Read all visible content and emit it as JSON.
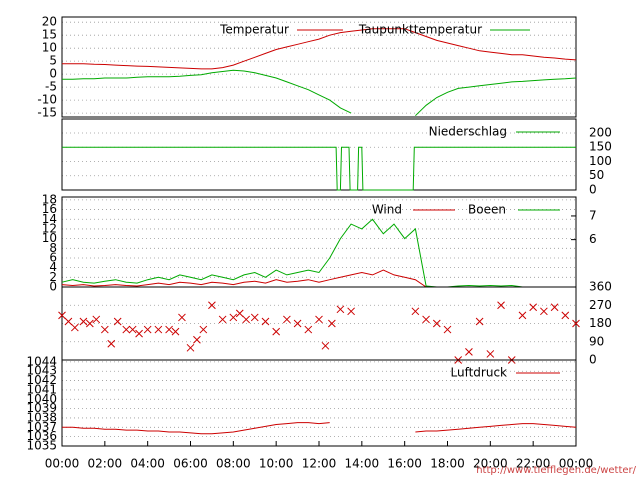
{
  "chart_data": [
    {
      "type": "line",
      "xlim": [
        0,
        24
      ],
      "ylim": [
        -16.5,
        22
      ],
      "yticks": [
        -15,
        -10,
        -5,
        0,
        5,
        10,
        15,
        20
      ],
      "grid": true,
      "x": [
        0,
        0.5,
        1,
        1.5,
        2,
        2.5,
        3,
        3.5,
        4,
        4.5,
        5,
        5.5,
        6,
        6.5,
        7,
        7.5,
        8,
        8.5,
        9,
        9.5,
        10,
        10.5,
        11,
        11.5,
        12,
        12.5,
        13,
        13.5,
        14,
        14.5,
        15,
        15.5,
        16,
        16.5,
        17,
        17.5,
        18,
        18.5,
        19,
        19.5,
        20,
        20.5,
        21,
        21.5,
        22,
        22.5,
        23,
        23.5,
        24
      ],
      "series": [
        {
          "name": "Temperatur",
          "color": "#cc0000",
          "values": [
            4,
            4,
            4,
            3.8,
            3.7,
            3.5,
            3.3,
            3.1,
            3,
            2.8,
            2.6,
            2.4,
            2.2,
            2,
            2,
            2.5,
            3.5,
            5,
            6.5,
            8,
            9.5,
            10.5,
            11.5,
            12.5,
            13.5,
            15,
            16,
            16.5,
            17,
            17.5,
            17.5,
            17.5,
            17.5,
            16,
            14.5,
            13,
            12,
            11,
            10,
            9,
            8.5,
            8,
            7.5,
            7.5,
            7,
            6.5,
            6.2,
            5.8,
            5.5
          ]
        },
        {
          "name": "Taupunkttemperatur",
          "color": "#00aa00",
          "values": [
            -2,
            -2,
            -1.8,
            -1.8,
            -1.5,
            -1.5,
            -1.5,
            -1.2,
            -1,
            -1,
            -1,
            -0.8,
            -0.5,
            -0.2,
            0.5,
            1,
            1.5,
            1.2,
            0.5,
            -0.5,
            -1.5,
            -3,
            -4.5,
            -6,
            -8,
            -10,
            -13,
            -15,
            null,
            null,
            null,
            null,
            null,
            -16,
            -12,
            -9,
            -7,
            -5.5,
            -5,
            -4.5,
            -4,
            -3.5,
            -3,
            -2.8,
            -2.5,
            -2.2,
            -2,
            -1.8,
            -1.5
          ]
        }
      ]
    },
    {
      "type": "line",
      "xlim": [
        0,
        24
      ],
      "ylim": [
        0,
        249
      ],
      "yticks": [
        0,
        50,
        100,
        150,
        200
      ],
      "grid": true,
      "x": [
        0,
        12.8,
        12.85,
        13.0,
        13.05,
        13.4,
        13.45,
        13.8,
        13.85,
        14.0,
        14.05,
        16.4,
        16.45,
        24
      ],
      "series": [
        {
          "name": "Niederschlag",
          "color": "#00aa00",
          "values": [
            150,
            150,
            0,
            0,
            150,
            150,
            0,
            0,
            150,
            150,
            0,
            0,
            150,
            150
          ]
        }
      ]
    },
    {
      "type": "line",
      "xlim": [
        0,
        24
      ],
      "ylim": [
        0,
        18.6
      ],
      "yticks": [
        0,
        2,
        4,
        6,
        8,
        10,
        12,
        14,
        16,
        18
      ],
      "y2lim": [
        4,
        7.8
      ],
      "y2ticks": [
        6,
        7
      ],
      "grid": true,
      "x": [
        0,
        0.5,
        1,
        1.5,
        2,
        2.5,
        3,
        3.5,
        4,
        4.5,
        5,
        5.5,
        6,
        6.5,
        7,
        7.5,
        8,
        8.5,
        9,
        9.5,
        10,
        10.5,
        11,
        11.5,
        12,
        12.5,
        13,
        13.5,
        14,
        14.5,
        15,
        15.5,
        16,
        16.5,
        17,
        17.5,
        18,
        18.5,
        19,
        19.5,
        20,
        20.5,
        21,
        21.5,
        22,
        22.5,
        23,
        23.5,
        24
      ],
      "series": [
        {
          "name": "Wind",
          "color": "#cc0000",
          "values": [
            0.5,
            0.3,
            0.5,
            0.2,
            0.3,
            0.5,
            0.3,
            0.2,
            0.5,
            0.8,
            0.5,
            1,
            0.8,
            0.5,
            1,
            0.8,
            0.5,
            1,
            1.2,
            0.8,
            1.5,
            1,
            1.2,
            1.5,
            1,
            1.5,
            2,
            2.5,
            3,
            2.5,
            3.5,
            2.5,
            2,
            1.5,
            0,
            0,
            0,
            0,
            0,
            0,
            0,
            0,
            0,
            0,
            0,
            0,
            0,
            0,
            0
          ]
        },
        {
          "name": "Boeen",
          "color": "#00aa00",
          "values": [
            1,
            1.5,
            1,
            0.8,
            1.2,
            1.5,
            1,
            0.8,
            1.5,
            2,
            1.5,
            2.5,
            2,
            1.5,
            2.5,
            2,
            1.5,
            2.5,
            3,
            2,
            3.5,
            2.5,
            3,
            3.5,
            3,
            6,
            10,
            13,
            12,
            14,
            11,
            13,
            10,
            12,
            0.2,
            0,
            0,
            0.2,
            0.3,
            0.2,
            0.3,
            0.2,
            0.3,
            0,
            0,
            0,
            0,
            0,
            0
          ]
        }
      ]
    },
    {
      "type": "scatter",
      "xlim": [
        0,
        24
      ],
      "ylim": [
        0,
        360
      ],
      "yticks": [
        0,
        90,
        180,
        270,
        360
      ],
      "grid": true,
      "x": [
        0,
        0.3,
        0.6,
        1,
        1.3,
        1.6,
        2,
        2.3,
        2.6,
        3,
        3.3,
        3.6,
        4,
        4.5,
        5,
        5.3,
        5.6,
        6,
        6.3,
        6.6,
        7,
        7.5,
        8,
        8.3,
        8.6,
        9,
        9.5,
        10,
        10.5,
        11,
        11.5,
        12,
        12.3,
        12.6,
        13,
        13.5,
        16.5,
        17,
        17.5,
        18,
        18.5,
        19,
        19.5,
        20,
        20.5,
        21,
        21.5,
        22,
        22.5,
        23,
        23.5,
        24
      ],
      "series": [
        {
          "color": "#cc0000",
          "values": [
            220,
            190,
            160,
            190,
            180,
            200,
            150,
            80,
            190,
            150,
            150,
            130,
            150,
            150,
            150,
            140,
            210,
            60,
            100,
            150,
            270,
            200,
            210,
            230,
            200,
            210,
            190,
            140,
            200,
            180,
            150,
            200,
            70,
            180,
            250,
            240,
            240,
            200,
            180,
            150,
            0,
            40,
            190,
            30,
            270,
            0,
            220,
            260,
            240,
            260,
            220,
            180
          ]
        }
      ]
    },
    {
      "type": "line",
      "xlim": [
        0,
        24
      ],
      "ylim": [
        1035,
        1044.2
      ],
      "yticks": [
        1035,
        1036,
        1037,
        1038,
        1039,
        1040,
        1041,
        1042,
        1043,
        1044
      ],
      "grid": true,
      "xticks": [
        {
          "value": 0,
          "label": "00:00"
        },
        {
          "value": 2,
          "label": "02:00"
        },
        {
          "value": 4,
          "label": "04:00"
        },
        {
          "value": 6,
          "label": "06:00"
        },
        {
          "value": 8,
          "label": "08:00"
        },
        {
          "value": 10,
          "label": "10:00"
        },
        {
          "value": 12,
          "label": "12:00"
        },
        {
          "value": 14,
          "label": "14:00"
        },
        {
          "value": 16,
          "label": "16:00"
        },
        {
          "value": 18,
          "label": "18:00"
        },
        {
          "value": 20,
          "label": "20:00"
        },
        {
          "value": 22,
          "label": "22:00"
        },
        {
          "value": 24,
          "label": "00:00"
        }
      ],
      "x": [
        0,
        0.5,
        1,
        1.5,
        2,
        2.5,
        3,
        3.5,
        4,
        4.5,
        5,
        5.5,
        6,
        6.5,
        7,
        7.5,
        8,
        8.5,
        9,
        9.5,
        10,
        10.5,
        11,
        11.5,
        12,
        12.5,
        13,
        13.5,
        14,
        14.5,
        15,
        15.5,
        16,
        16.5,
        17,
        17.5,
        18,
        18.5,
        19,
        19.5,
        20,
        20.5,
        21,
        21.5,
        22,
        22.5,
        23,
        23.5,
        24
      ],
      "series": [
        {
          "name": "Luftdruck",
          "color": "#cc0000",
          "values": [
            1037,
            1037,
            1036.9,
            1036.9,
            1036.8,
            1036.8,
            1036.7,
            1036.7,
            1036.6,
            1036.6,
            1036.5,
            1036.5,
            1036.4,
            1036.3,
            1036.3,
            1036.4,
            1036.5,
            1036.7,
            1036.9,
            1037.1,
            1037.3,
            1037.4,
            1037.5,
            1037.5,
            1037.4,
            1037.5,
            null,
            null,
            null,
            null,
            null,
            null,
            null,
            1036.5,
            1036.6,
            1036.6,
            1036.7,
            1036.8,
            1036.9,
            1037,
            1037.1,
            1037.2,
            1037.3,
            1037.4,
            1037.4,
            1037.3,
            1037.2,
            1037.1,
            1037
          ]
        }
      ]
    }
  ],
  "footer": "http://www.tiefflegen.de/wetter/"
}
